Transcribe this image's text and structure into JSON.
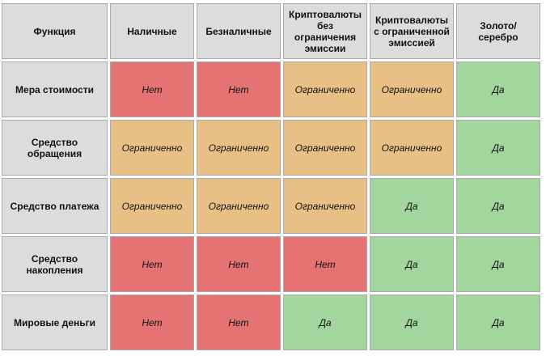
{
  "table": {
    "headers": [
      "Функция",
      "Наличные",
      "Безналичные",
      "Криптовалюты без ограничения эмиссии",
      "Криптовалюты с ограниченной эмиссией",
      "Золото/серебро"
    ],
    "rows": [
      {
        "label": "Мера стоимости",
        "cells": [
          "Нет",
          "Нет",
          "Ограниченно",
          "Ограниченно",
          "Да"
        ]
      },
      {
        "label": "Средство обращения",
        "cells": [
          "Ограниченно",
          "Ограниченно",
          "Ограниченно",
          "Ограниченно",
          "Да"
        ]
      },
      {
        "label": "Средство платежа",
        "cells": [
          "Ограниченно",
          "Ограниченно",
          "Ограниченно",
          "Да",
          "Да"
        ]
      },
      {
        "label": "Средство накопления",
        "cells": [
          "Нет",
          "Нет",
          "Нет",
          "Да",
          "Да"
        ]
      },
      {
        "label": "Мировые деньги",
        "cells": [
          "Нет",
          "Нет",
          "Да",
          "Да",
          "Да"
        ]
      }
    ]
  },
  "colors": {
    "no": "#e57373",
    "limited": "#e8c086",
    "yes": "#a3d69f",
    "header": "#dcdcdc"
  }
}
